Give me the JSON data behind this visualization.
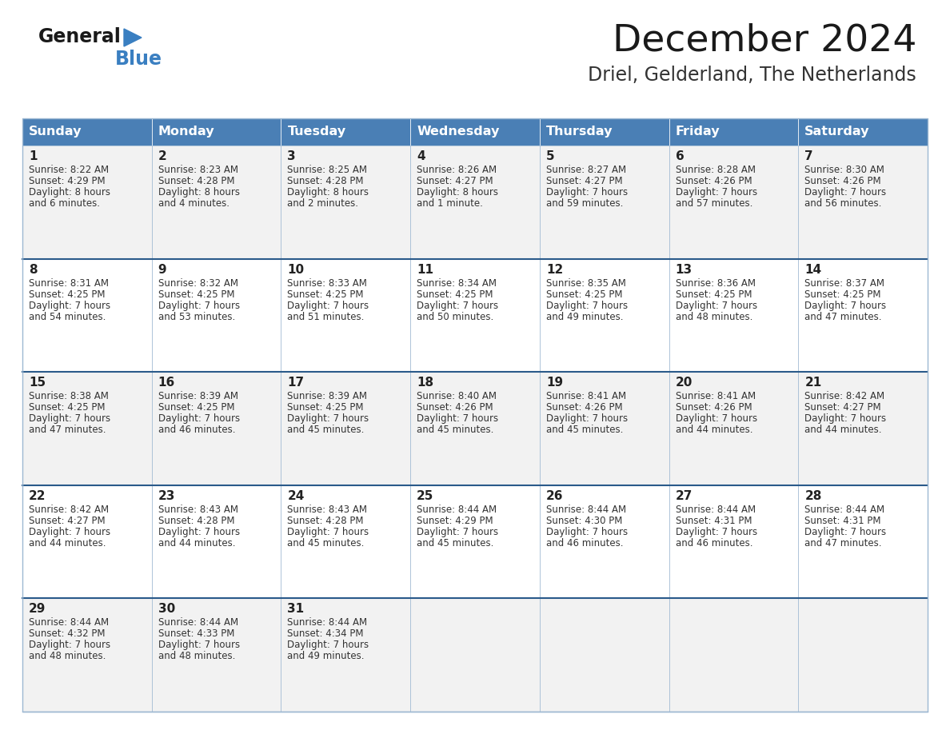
{
  "title": "December 2024",
  "subtitle": "Driel, Gelderland, The Netherlands",
  "days_of_week": [
    "Sunday",
    "Monday",
    "Tuesday",
    "Wednesday",
    "Thursday",
    "Friday",
    "Saturday"
  ],
  "header_bg": "#4a7fb5",
  "header_text": "#FFFFFF",
  "cell_bg_odd": "#f2f2f2",
  "cell_bg_even": "#ffffff",
  "cell_border": "#9db8d2",
  "week_border": "#2a5a8a",
  "day_num_color": "#222222",
  "cell_text_color": "#333333",
  "title_color": "#1a1a1a",
  "subtitle_color": "#333333",
  "logo_general_color": "#1a1a1a",
  "logo_blue_color": "#3a7fc1",
  "fig_width": 11.88,
  "fig_height": 9.18,
  "dpi": 100,
  "weeks": [
    [
      {
        "day": 1,
        "sunrise": "8:22 AM",
        "sunset": "4:29 PM",
        "daylight": "8 hours and 6 minutes."
      },
      {
        "day": 2,
        "sunrise": "8:23 AM",
        "sunset": "4:28 PM",
        "daylight": "8 hours and 4 minutes."
      },
      {
        "day": 3,
        "sunrise": "8:25 AM",
        "sunset": "4:28 PM",
        "daylight": "8 hours and 2 minutes."
      },
      {
        "day": 4,
        "sunrise": "8:26 AM",
        "sunset": "4:27 PM",
        "daylight": "8 hours and 1 minute."
      },
      {
        "day": 5,
        "sunrise": "8:27 AM",
        "sunset": "4:27 PM",
        "daylight": "7 hours and 59 minutes."
      },
      {
        "day": 6,
        "sunrise": "8:28 AM",
        "sunset": "4:26 PM",
        "daylight": "7 hours and 57 minutes."
      },
      {
        "day": 7,
        "sunrise": "8:30 AM",
        "sunset": "4:26 PM",
        "daylight": "7 hours and 56 minutes."
      }
    ],
    [
      {
        "day": 8,
        "sunrise": "8:31 AM",
        "sunset": "4:25 PM",
        "daylight": "7 hours and 54 minutes."
      },
      {
        "day": 9,
        "sunrise": "8:32 AM",
        "sunset": "4:25 PM",
        "daylight": "7 hours and 53 minutes."
      },
      {
        "day": 10,
        "sunrise": "8:33 AM",
        "sunset": "4:25 PM",
        "daylight": "7 hours and 51 minutes."
      },
      {
        "day": 11,
        "sunrise": "8:34 AM",
        "sunset": "4:25 PM",
        "daylight": "7 hours and 50 minutes."
      },
      {
        "day": 12,
        "sunrise": "8:35 AM",
        "sunset": "4:25 PM",
        "daylight": "7 hours and 49 minutes."
      },
      {
        "day": 13,
        "sunrise": "8:36 AM",
        "sunset": "4:25 PM",
        "daylight": "7 hours and 48 minutes."
      },
      {
        "day": 14,
        "sunrise": "8:37 AM",
        "sunset": "4:25 PM",
        "daylight": "7 hours and 47 minutes."
      }
    ],
    [
      {
        "day": 15,
        "sunrise": "8:38 AM",
        "sunset": "4:25 PM",
        "daylight": "7 hours and 47 minutes."
      },
      {
        "day": 16,
        "sunrise": "8:39 AM",
        "sunset": "4:25 PM",
        "daylight": "7 hours and 46 minutes."
      },
      {
        "day": 17,
        "sunrise": "8:39 AM",
        "sunset": "4:25 PM",
        "daylight": "7 hours and 45 minutes."
      },
      {
        "day": 18,
        "sunrise": "8:40 AM",
        "sunset": "4:26 PM",
        "daylight": "7 hours and 45 minutes."
      },
      {
        "day": 19,
        "sunrise": "8:41 AM",
        "sunset": "4:26 PM",
        "daylight": "7 hours and 45 minutes."
      },
      {
        "day": 20,
        "sunrise": "8:41 AM",
        "sunset": "4:26 PM",
        "daylight": "7 hours and 44 minutes."
      },
      {
        "day": 21,
        "sunrise": "8:42 AM",
        "sunset": "4:27 PM",
        "daylight": "7 hours and 44 minutes."
      }
    ],
    [
      {
        "day": 22,
        "sunrise": "8:42 AM",
        "sunset": "4:27 PM",
        "daylight": "7 hours and 44 minutes."
      },
      {
        "day": 23,
        "sunrise": "8:43 AM",
        "sunset": "4:28 PM",
        "daylight": "7 hours and 44 minutes."
      },
      {
        "day": 24,
        "sunrise": "8:43 AM",
        "sunset": "4:28 PM",
        "daylight": "7 hours and 45 minutes."
      },
      {
        "day": 25,
        "sunrise": "8:44 AM",
        "sunset": "4:29 PM",
        "daylight": "7 hours and 45 minutes."
      },
      {
        "day": 26,
        "sunrise": "8:44 AM",
        "sunset": "4:30 PM",
        "daylight": "7 hours and 46 minutes."
      },
      {
        "day": 27,
        "sunrise": "8:44 AM",
        "sunset": "4:31 PM",
        "daylight": "7 hours and 46 minutes."
      },
      {
        "day": 28,
        "sunrise": "8:44 AM",
        "sunset": "4:31 PM",
        "daylight": "7 hours and 47 minutes."
      }
    ],
    [
      {
        "day": 29,
        "sunrise": "8:44 AM",
        "sunset": "4:32 PM",
        "daylight": "7 hours and 48 minutes."
      },
      {
        "day": 30,
        "sunrise": "8:44 AM",
        "sunset": "4:33 PM",
        "daylight": "7 hours and 48 minutes."
      },
      {
        "day": 31,
        "sunrise": "8:44 AM",
        "sunset": "4:34 PM",
        "daylight": "7 hours and 49 minutes."
      },
      null,
      null,
      null,
      null
    ]
  ]
}
